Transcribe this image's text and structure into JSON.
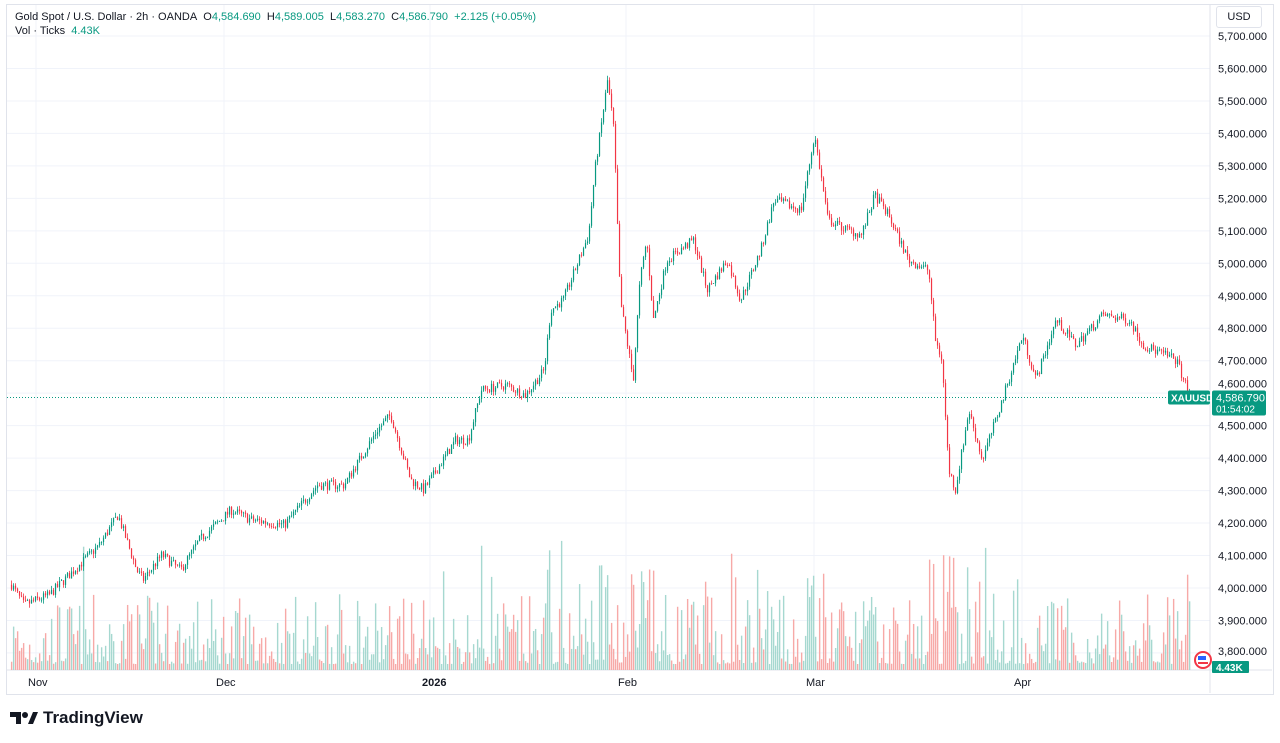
{
  "header": {
    "symbol": "Gold Spot / U.S. Dollar · 2h · OANDA",
    "o_label": "O",
    "o": "4,584.690",
    "h_label": "H",
    "h": "4,589.005",
    "l_label": "L",
    "l": "4,583.270",
    "c_label": "C",
    "c": "4,586.790",
    "change": "+2.125 (+0.05%)",
    "vol_label": "Vol · Ticks",
    "vol": "4.43K"
  },
  "currency_button": "USD",
  "last_price": {
    "ticker": "XAUUSD",
    "price": "4,586.790",
    "countdown": "01:54:02",
    "volume": "4.43K"
  },
  "brand": "TradingView",
  "colors": {
    "up": "#089981",
    "down": "#f23645",
    "vol_up": "#a6d8d0",
    "vol_down": "#f7a9a7",
    "price_tag": "#089981"
  },
  "chart_data": {
    "type": "candlestick",
    "title": "Gold Spot / U.S. Dollar · 2h · OANDA",
    "y_ticks": [
      "5,700.000",
      "5,600.000",
      "5,500.000",
      "5,400.000",
      "5,300.000",
      "5,200.000",
      "5,100.000",
      "5,000.000",
      "4,900.000",
      "4,800.000",
      "4,700.000",
      "4,600.000",
      "4,500.000",
      "4,400.000",
      "4,300.000",
      "4,200.000",
      "4,100.000",
      "4,000.000",
      "3,900.000",
      "3,800.000"
    ],
    "ylim": [
      3800,
      5700
    ],
    "x_ticks": [
      "Nov",
      "Dec",
      "2026",
      "Feb",
      "Mar",
      "Apr"
    ],
    "grid": true,
    "approx_close_path": [
      [
        "2025-10-28",
        4010
      ],
      [
        "2025-10-30",
        3948
      ],
      [
        "2025-11-03",
        3978
      ],
      [
        "2025-11-07",
        4055
      ],
      [
        "2025-11-11",
        4132
      ],
      [
        "2025-11-14",
        4225
      ],
      [
        "2025-11-17",
        4055
      ],
      [
        "2025-11-18",
        4025
      ],
      [
        "2025-11-21",
        4102
      ],
      [
        "2025-11-24",
        4055
      ],
      [
        "2025-11-27",
        4148
      ],
      [
        "2025-12-02",
        4240
      ],
      [
        "2025-12-05",
        4210
      ],
      [
        "2025-12-10",
        4194
      ],
      [
        "2025-12-15",
        4317
      ],
      [
        "2025-12-19",
        4317
      ],
      [
        "2025-12-24",
        4487
      ],
      [
        "2025-12-26",
        4533
      ],
      [
        "2025-12-29",
        4333
      ],
      [
        "2025-12-31",
        4302
      ],
      [
        "2026-01-05",
        4456
      ],
      [
        "2026-01-07",
        4456
      ],
      [
        "2026-01-09",
        4610
      ],
      [
        "2026-01-13",
        4625
      ],
      [
        "2026-01-16",
        4594
      ],
      [
        "2026-01-19",
        4671
      ],
      [
        "2026-01-20",
        4856
      ],
      [
        "2026-01-22",
        4887
      ],
      [
        "2026-01-26",
        5087
      ],
      [
        "2026-01-27",
        5287
      ],
      [
        "2026-01-29",
        5564
      ],
      [
        "2026-01-30",
        5410
      ],
      [
        "2026-01-31",
        4887
      ],
      [
        "2026-02-02",
        4640
      ],
      [
        "2026-02-03",
        4948
      ],
      [
        "2026-02-04",
        5072
      ],
      [
        "2026-02-05",
        4825
      ],
      [
        "2026-02-07",
        5010
      ],
      [
        "2026-02-11",
        5072
      ],
      [
        "2026-02-13",
        4918
      ],
      [
        "2026-02-16",
        5010
      ],
      [
        "2026-02-18",
        4887
      ],
      [
        "2026-02-21",
        5041
      ],
      [
        "2026-02-23",
        5195
      ],
      [
        "2026-02-27",
        5164
      ],
      [
        "2026-03-01",
        5395
      ],
      [
        "2026-03-03",
        5133
      ],
      [
        "2026-03-06",
        5102
      ],
      [
        "2026-03-08",
        5087
      ],
      [
        "2026-03-10",
        5210
      ],
      [
        "2026-03-12",
        5149
      ],
      [
        "2026-03-15",
        5010
      ],
      [
        "2026-03-18",
        4979
      ],
      [
        "2026-03-19",
        4764
      ],
      [
        "2026-03-20",
        4702
      ],
      [
        "2026-03-21",
        4364
      ],
      [
        "2026-03-22",
        4302
      ],
      [
        "2026-03-24",
        4548
      ],
      [
        "2026-03-26",
        4394
      ],
      [
        "2026-03-29",
        4579
      ],
      [
        "2026-04-01",
        4779
      ],
      [
        "2026-04-03",
        4641
      ],
      [
        "2026-04-06",
        4825
      ],
      [
        "2026-04-09",
        4748
      ],
      [
        "2026-04-13",
        4841
      ],
      [
        "2026-04-17",
        4825
      ],
      [
        "2026-04-19",
        4748
      ],
      [
        "2026-04-24",
        4702
      ],
      [
        "2026-04-26",
        4587
      ]
    ],
    "last": 4586.79
  }
}
